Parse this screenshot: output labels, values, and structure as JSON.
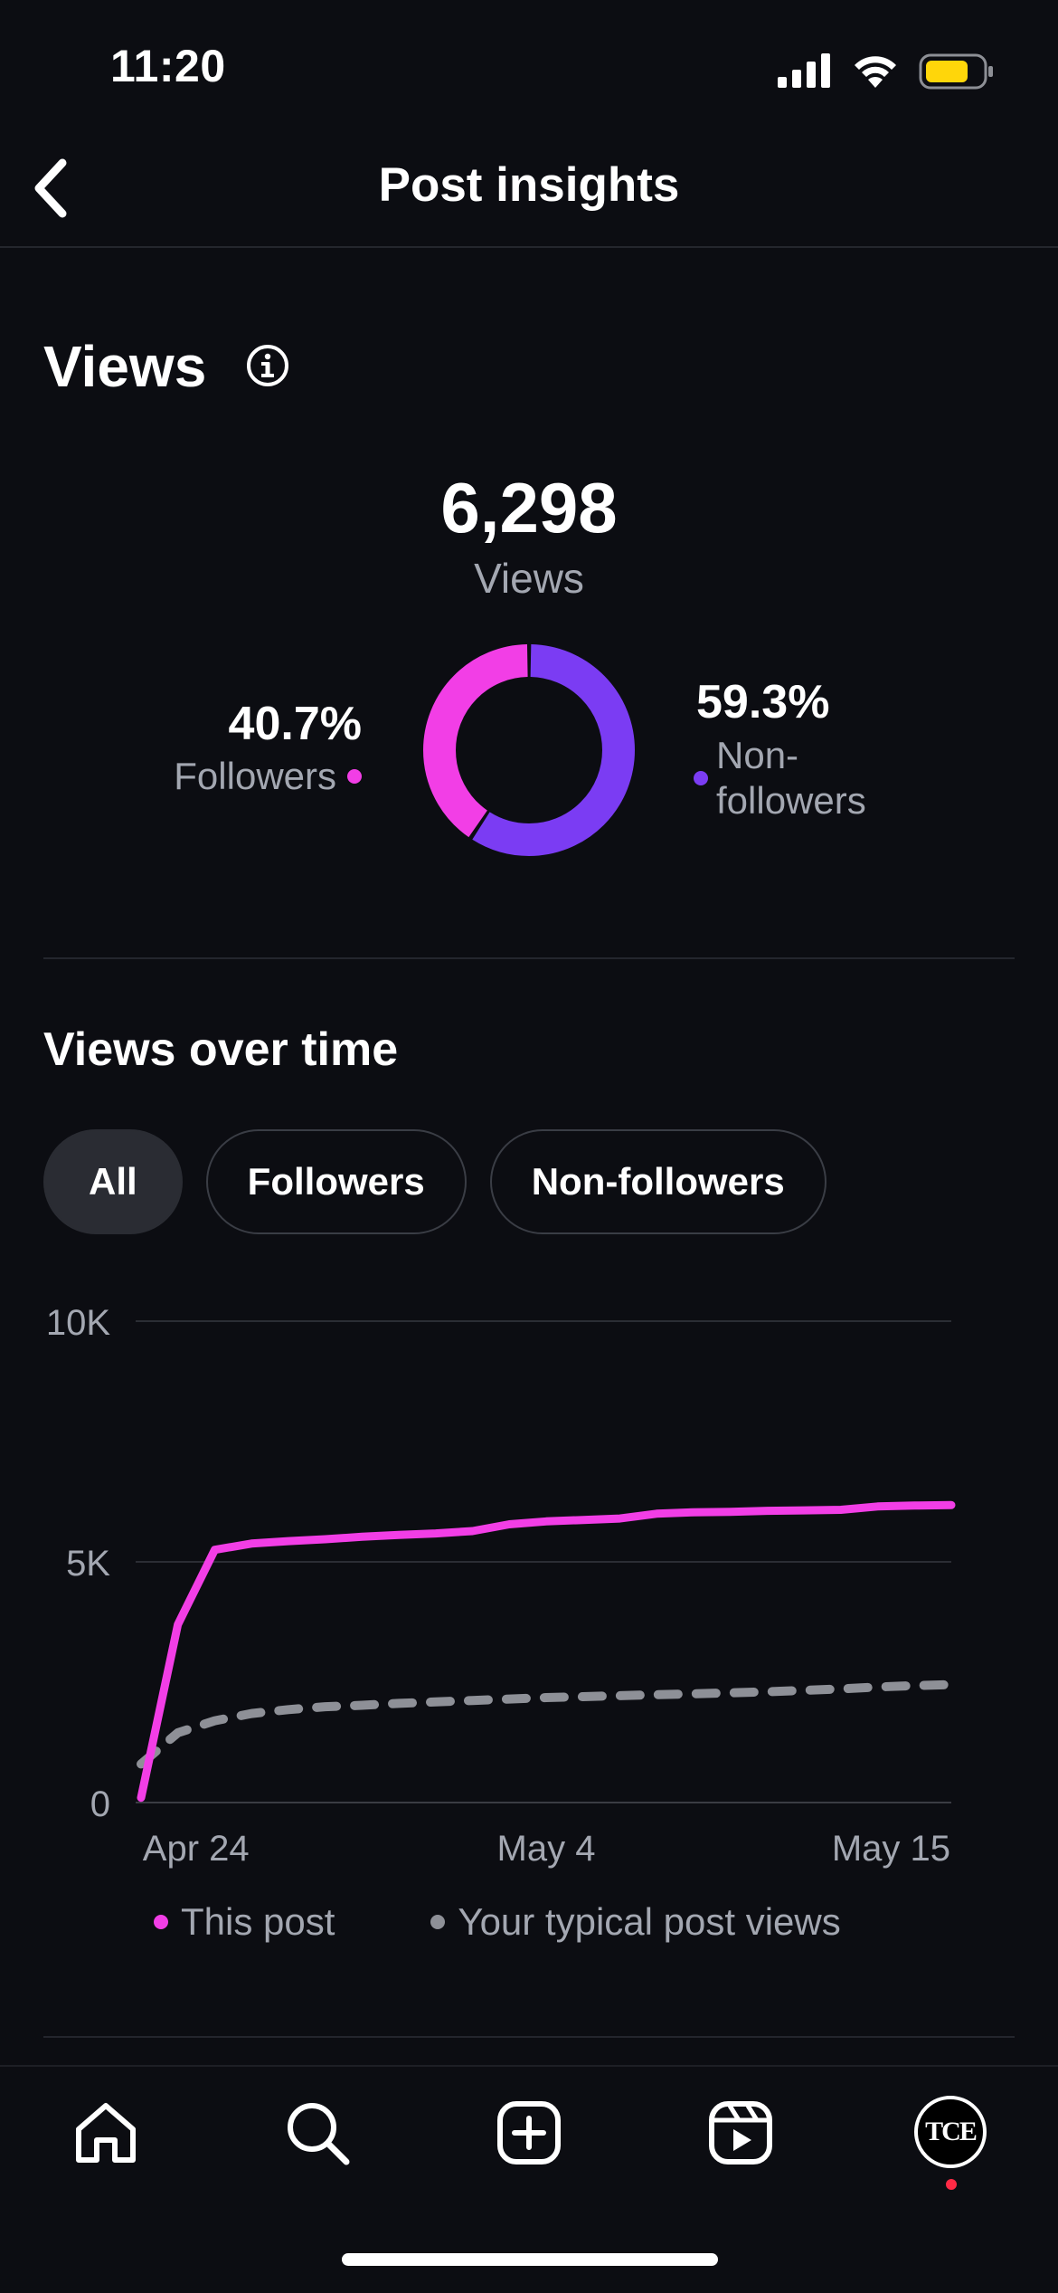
{
  "status_bar": {
    "time": "11:20"
  },
  "header": {
    "title": "Post insights"
  },
  "views": {
    "heading": "Views",
    "total": "6,298",
    "total_label": "Views",
    "followers_pct": "40.7%",
    "followers_label": "Followers",
    "nonfollowers_pct": "59.3%",
    "nonfollowers_label_line1": "Non-",
    "nonfollowers_label_line2": "followers",
    "followers_fraction": 0.407,
    "colors": {
      "followers": "#f23ee6",
      "nonfollowers": "#7b3cf3"
    }
  },
  "views_over_time": {
    "heading": "Views over time",
    "filters": [
      "All",
      "Followers",
      "Non-followers"
    ],
    "active_filter": "All"
  },
  "chart_data": {
    "type": "line",
    "y_ticks": [
      "10K",
      "5K",
      "0"
    ],
    "ylim": [
      0,
      10000
    ],
    "x_tick_labels": [
      "Apr 24",
      "May 4",
      "May 15"
    ],
    "x": [
      "Apr 23",
      "Apr 24",
      "Apr 25",
      "Apr 26",
      "Apr 27",
      "Apr 28",
      "Apr 29",
      "Apr 30",
      "May 1",
      "May 2",
      "May 3",
      "May 4",
      "May 5",
      "May 6",
      "May 7",
      "May 8",
      "May 9",
      "May 10",
      "May 11",
      "May 12",
      "May 13",
      "May 14",
      "May 15"
    ],
    "series": [
      {
        "name": "This post",
        "color": "#f23ee6",
        "style": "solid",
        "values": [
          100,
          3700,
          5250,
          5380,
          5430,
          5470,
          5520,
          5560,
          5590,
          5640,
          5780,
          5840,
          5870,
          5900,
          6000,
          6030,
          6040,
          6060,
          6070,
          6080,
          6150,
          6170,
          6180
        ]
      },
      {
        "name": "Your typical post views",
        "color": "#8e9097",
        "style": "dashed",
        "values": [
          800,
          1450,
          1700,
          1850,
          1930,
          1990,
          2020,
          2060,
          2090,
          2120,
          2150,
          2180,
          2200,
          2220,
          2240,
          2260,
          2280,
          2300,
          2330,
          2360,
          2400,
          2430,
          2450
        ]
      }
    ],
    "legend": [
      "This post",
      "Your typical post views"
    ],
    "grid": true,
    "legend_position": "bottom"
  },
  "icons": {
    "back": "chevron-left-icon",
    "info": "info-icon",
    "home": "home-icon",
    "search": "search-icon",
    "create": "plus-square-icon",
    "reels": "reels-icon"
  },
  "profile": {
    "avatar_text": "TCE"
  }
}
